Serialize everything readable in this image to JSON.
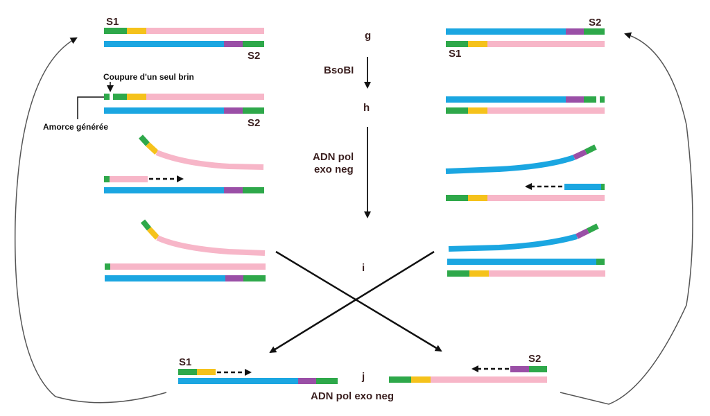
{
  "colors": {
    "green": "#2ea84a",
    "yellow": "#f5c21b",
    "pink": "#f7b6c8",
    "blue": "#1ba6e1",
    "purple": "#9a4fa6",
    "arrow": "#111111",
    "text_dark": "#3a1f1f"
  },
  "labels": {
    "step_g": "g",
    "step_h": "h",
    "step_i": "i",
    "step_j": "j",
    "enzyme": "BsoBI",
    "pol_line1": "ADN pol",
    "pol_line2": "exo neg",
    "pol_bottom": "ADN pol exo neg",
    "s1": "S1",
    "s2": "S2",
    "nick": "Coupure d'un seul brin",
    "primer": "Amorce générée"
  },
  "icons": {
    "dashed_extension": "dashed-arrow-icon",
    "arrowhead": "arrowhead-icon"
  }
}
